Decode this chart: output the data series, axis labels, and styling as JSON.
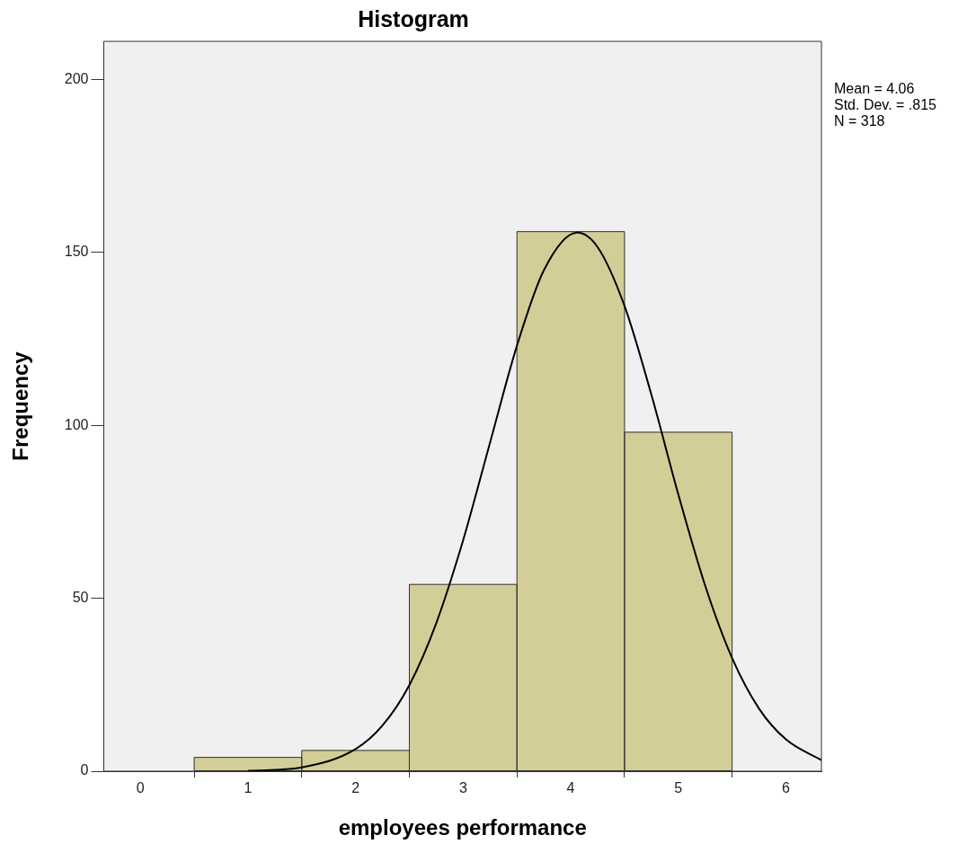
{
  "chart_data": {
    "type": "histogram",
    "title": "Histogram",
    "xlabel": "employees performance",
    "ylabel": "Frequency",
    "bins": [
      0.5,
      1.5,
      2.5,
      3.5,
      4.5,
      5.5
    ],
    "values": [
      4,
      6,
      54,
      156,
      98
    ],
    "color": "#d3ce98",
    "series": [
      {
        "type": "line",
        "color": "#000000",
        "x": [
          1.0,
          1.5,
          2.0,
          2.25,
          2.5,
          2.75,
          3.0,
          3.25,
          3.5,
          3.75,
          4.06,
          4.25,
          4.5,
          4.75,
          5.0,
          5.25,
          5.5,
          5.75,
          6.0,
          6.33
        ],
        "values": [
          0.1,
          1.1,
          6.4,
          13.2,
          24.9,
          42.8,
          66.8,
          95,
          123,
          144.8,
          155.7,
          151.5,
          134.5,
          108.8,
          80,
          53.6,
          32.7,
          18.1,
          9.2,
          3.2
        ]
      }
    ],
    "xlim": [
      -0.34,
      6.33
    ],
    "xticks": [
      0,
      1,
      2,
      3,
      4,
      5,
      6
    ],
    "ylim": [
      0,
      211
    ],
    "yticks": [
      0,
      50,
      100,
      150,
      200
    ],
    "grid": false,
    "legend": false,
    "annotations": [
      "Mean = 4.06",
      "Std. Dev. = .815",
      "N = 318"
    ]
  }
}
